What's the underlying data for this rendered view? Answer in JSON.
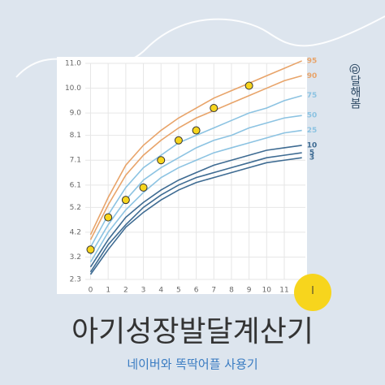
{
  "page": {
    "title": "아기성장발달계산기",
    "subtitle": "네이버와 똑딱어플 사용기",
    "credit": "@달해봄"
  },
  "chart_data": {
    "type": "line",
    "x": [
      0,
      1,
      2,
      3,
      4,
      5,
      6,
      7,
      8,
      9,
      10,
      11,
      12
    ],
    "xlim": [
      -0.3,
      12.2
    ],
    "xticks": [
      0,
      1,
      2,
      3,
      4,
      5,
      6,
      7,
      8,
      9,
      10,
      11
    ],
    "ylim": [
      2.3,
      11.0
    ],
    "yticks": [
      2.3,
      3.2,
      4.2,
      5.2,
      6.1,
      7.1,
      8.1,
      {
        "value": 9,
        "label": "9.0"
      },
      {
        "value": 10,
        "label": "10.0"
      },
      {
        "value": 11,
        "label": "11.0"
      }
    ],
    "grid": true,
    "series": [
      {
        "name": "95",
        "color": "#e8a46a",
        "values": [
          4.1,
          5.6,
          6.9,
          7.7,
          8.3,
          8.8,
          9.2,
          9.6,
          9.9,
          10.2,
          10.5,
          10.8,
          11.1
        ]
      },
      {
        "name": "90",
        "color": "#e8a46a",
        "values": [
          3.9,
          5.3,
          6.5,
          7.3,
          7.9,
          8.4,
          8.8,
          9.1,
          9.4,
          9.7,
          10.0,
          10.3,
          10.5
        ]
      },
      {
        "name": "75",
        "color": "#8cc3e2",
        "values": [
          3.6,
          4.9,
          6.0,
          6.8,
          7.3,
          7.8,
          8.1,
          8.4,
          8.7,
          9.0,
          9.2,
          9.5,
          9.7
        ]
      },
      {
        "name": "50",
        "color": "#8cc3e2",
        "values": [
          3.3,
          4.5,
          5.5,
          6.3,
          6.8,
          7.2,
          7.6,
          7.9,
          8.1,
          8.4,
          8.6,
          8.8,
          8.9
        ]
      },
      {
        "name": "25",
        "color": "#8cc3e2",
        "values": [
          3.0,
          4.2,
          5.1,
          5.8,
          6.4,
          6.8,
          7.1,
          7.4,
          7.6,
          7.8,
          8.0,
          8.2,
          8.3
        ]
      },
      {
        "name": "10",
        "color": "#3e6b92",
        "values": [
          2.8,
          3.9,
          4.8,
          5.4,
          5.9,
          6.3,
          6.6,
          6.9,
          7.1,
          7.3,
          7.5,
          7.6,
          7.7
        ]
      },
      {
        "name": "5",
        "color": "#3e6b92",
        "values": [
          2.6,
          3.7,
          4.5,
          5.2,
          5.7,
          6.1,
          6.4,
          6.6,
          6.8,
          7.0,
          7.2,
          7.3,
          7.4
        ]
      },
      {
        "name": "3",
        "color": "#3e6b92",
        "values": [
          2.5,
          3.5,
          4.4,
          5.0,
          5.5,
          5.9,
          6.2,
          6.4,
          6.6,
          6.8,
          7.0,
          7.1,
          7.2
        ]
      }
    ],
    "markers": {
      "color": "#f7d51d",
      "x": [
        0,
        1,
        2,
        3,
        4,
        5,
        6,
        7,
        9
      ],
      "values": [
        3.5,
        4.8,
        5.5,
        6.0,
        7.1,
        7.9,
        8.3,
        9.2,
        10.1
      ]
    }
  }
}
